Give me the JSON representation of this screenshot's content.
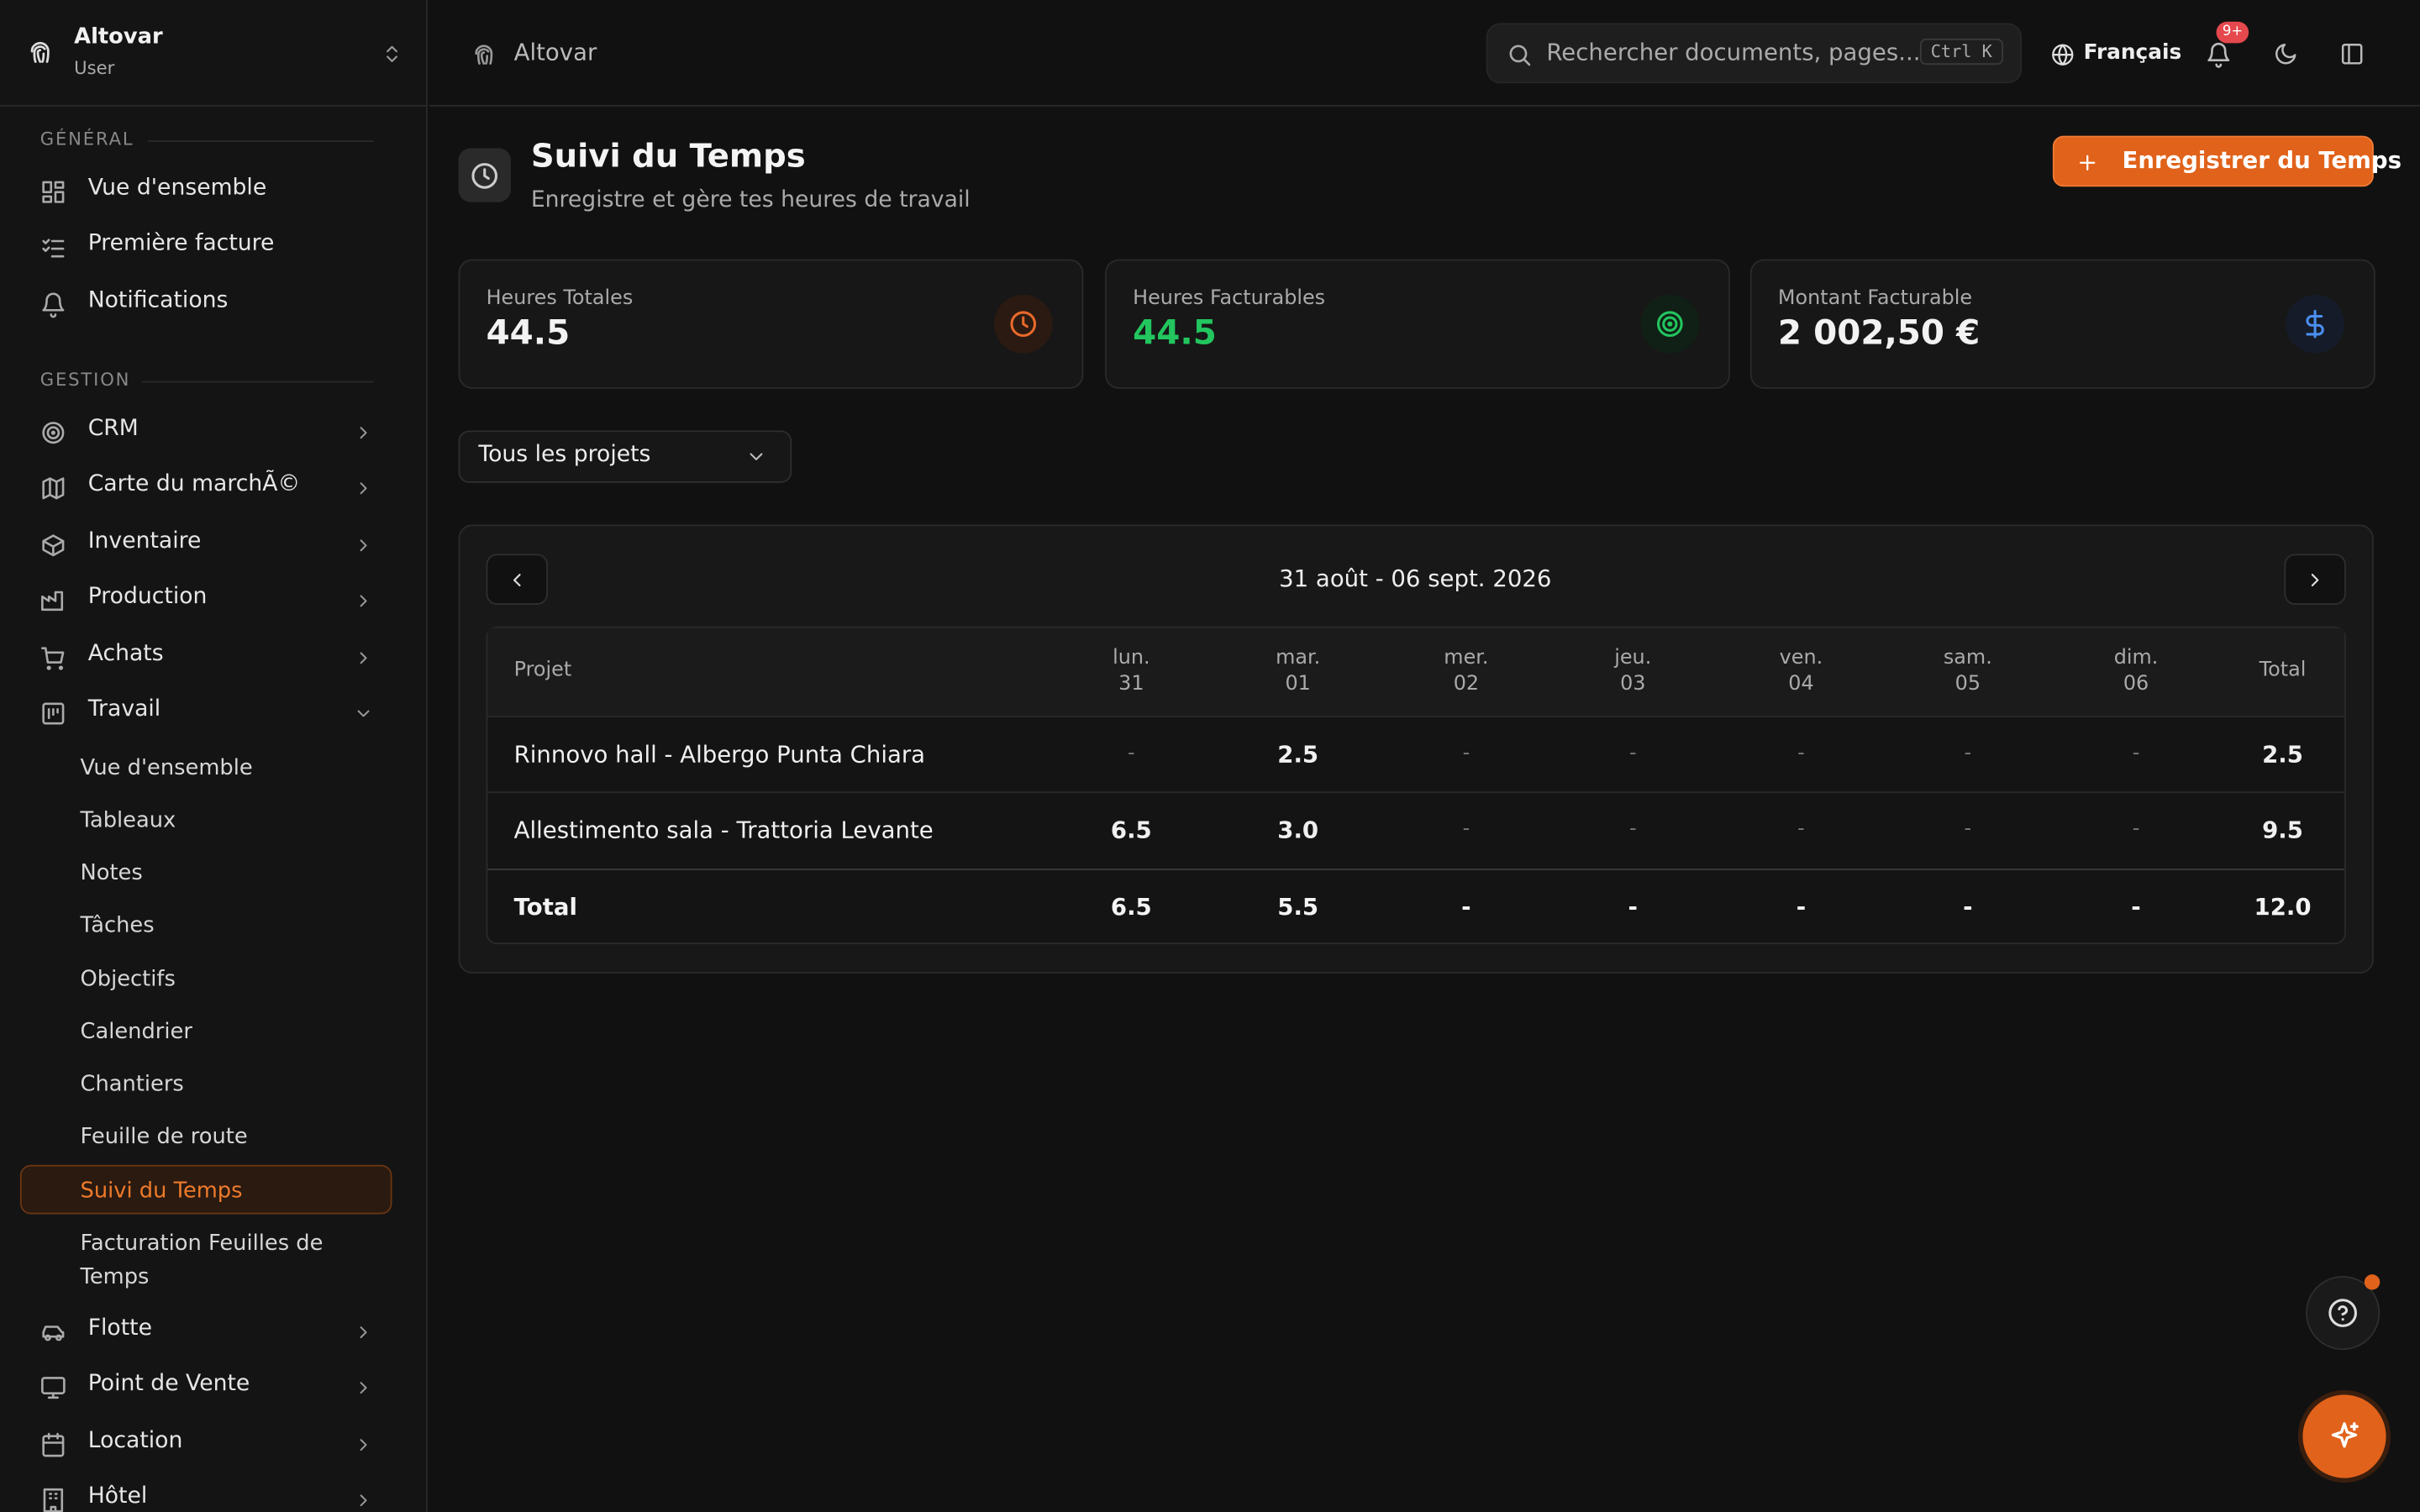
{
  "sidebar": {
    "org": "Altovar",
    "role": "User",
    "sections": [
      {
        "title": "GÉNÉRAL",
        "items": [
          "Vue d'ensemble",
          "Première facture",
          "Notifications"
        ]
      },
      {
        "title": "GESTION",
        "items": [
          "CRM",
          "Carte du marchÃ©",
          "Inventaire",
          "Production",
          "Achats",
          "Travail"
        ]
      }
    ],
    "sub_items": [
      "Vue d'ensemble",
      "Tableaux",
      "Notes",
      "Tâches",
      "Objectifs",
      "Calendrier",
      "Chantiers",
      "Feuille de route",
      "Suivi du Temps",
      "Facturation Feuilles de Temps"
    ],
    "more_items": [
      "Flotte",
      "Point de Vente",
      "Location",
      "Hôtel"
    ]
  },
  "topbar": {
    "breadcrumb": "Altovar",
    "search_placeholder": "Rechercher documents, pages...",
    "shortcut": "Ctrl K",
    "language": "Français",
    "notification_badge": "9+"
  },
  "header": {
    "title": "Suivi du Temps",
    "subtitle": "Enregistre et gère tes heures de travail",
    "action": "Enregistrer du Temps"
  },
  "stats": [
    {
      "label": "Heures Totales",
      "value": "44.5"
    },
    {
      "label": "Heures Facturables",
      "value": "44.5"
    },
    {
      "label": "Montant Facturable",
      "value": "2 002,50 €"
    }
  ],
  "filter": "Tous les projets",
  "week": {
    "range": "31 août - 06 sept. 2026"
  },
  "table": {
    "header_project": "Projet",
    "header_total": "Total",
    "columns": [
      {
        "day": "lun.",
        "date": "31"
      },
      {
        "day": "mar.",
        "date": "01"
      },
      {
        "day": "mer.",
        "date": "02"
      },
      {
        "day": "jeu.",
        "date": "03"
      },
      {
        "day": "ven.",
        "date": "04"
      },
      {
        "day": "sam.",
        "date": "05"
      },
      {
        "day": "dim.",
        "date": "06"
      }
    ],
    "rows": [
      {
        "project": "Rinnovo hall - Albergo Punta Chiara",
        "cells": [
          "-",
          "2.5",
          "-",
          "-",
          "-",
          "-",
          "-"
        ],
        "total": "2.5"
      },
      {
        "project": "Allestimento sala - Trattoria Levante",
        "cells": [
          "6.5",
          "3.0",
          "-",
          "-",
          "-",
          "-",
          "-"
        ],
        "total": "9.5"
      }
    ],
    "footer": {
      "label": "Total",
      "cells": [
        "6.5",
        "5.5",
        "-",
        "-",
        "-",
        "-",
        "-"
      ],
      "total": "12.0"
    }
  }
}
